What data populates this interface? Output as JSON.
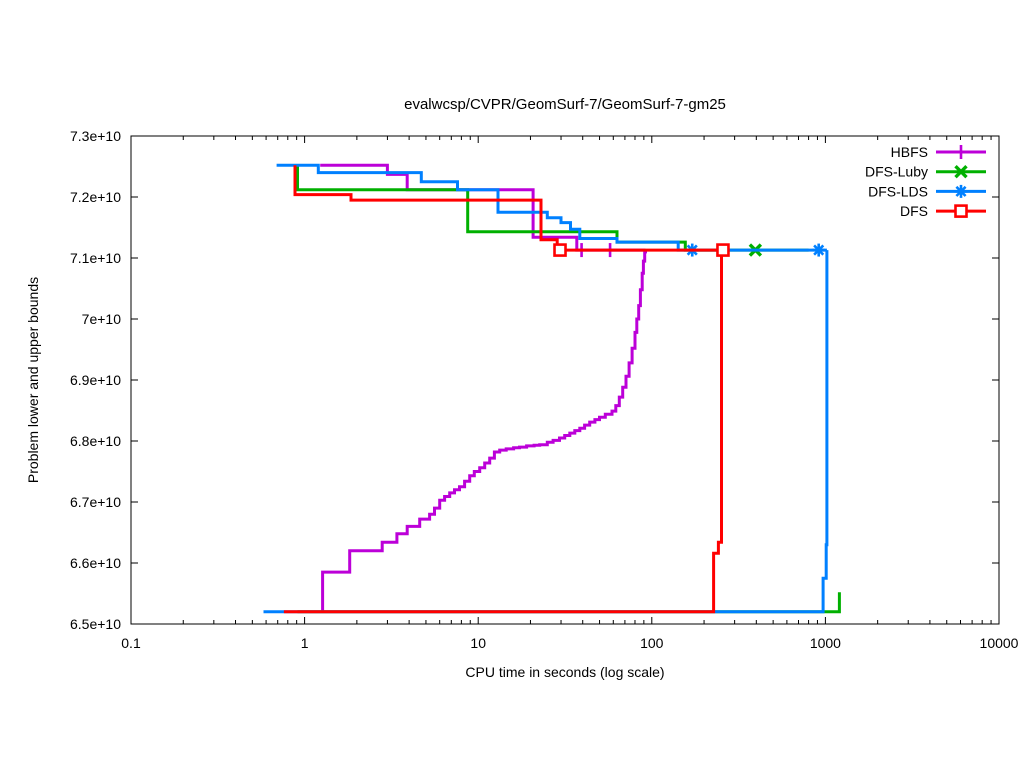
{
  "chart_data": {
    "type": "line",
    "title": "evalwcsp/CVPR/GeomSurf-7/GeomSurf-7-gm25",
    "xlabel": "CPU time in seconds (log scale)",
    "ylabel": "Problem lower and upper bounds",
    "x_scale": "log",
    "grid": false,
    "legend_position": "top-right-inside",
    "step_interpolation": "steps-post",
    "xlim": [
      0.1,
      10000
    ],
    "ylim": [
      65000000000.0,
      73000000000.0
    ],
    "x_ticks": {
      "values": [
        0.1,
        1,
        10,
        100,
        1000,
        10000
      ],
      "labels": [
        "0.1",
        "1",
        "10",
        "100",
        "1000",
        "10000"
      ]
    },
    "y_ticks": {
      "values": [
        65000000000.0,
        66000000000.0,
        67000000000.0,
        68000000000.0,
        69000000000.0,
        70000000000.0,
        71000000000.0,
        72000000000.0,
        73000000000.0
      ],
      "labels": [
        "6.5e+10",
        "6.6e+10",
        "6.7e+10",
        "6.8e+10",
        "6.9e+10",
        "7e+10",
        "7.1e+10",
        "7.2e+10",
        "7.3e+10"
      ]
    },
    "series": [
      {
        "name": "HBFS",
        "color": "#bc00d8",
        "marker": "plus",
        "upper": [
          [
            1.23,
            72520000000.0
          ],
          [
            3.0,
            72520000000.0
          ],
          [
            3.0,
            72370000000.0
          ],
          [
            3.9,
            72370000000.0
          ],
          [
            3.9,
            72120000000.0
          ],
          [
            20.7,
            72120000000.0
          ],
          [
            20.7,
            71340000000.0
          ],
          [
            37,
            71340000000.0
          ],
          [
            37,
            71130000000.0
          ],
          [
            92,
            71130000000.0
          ]
        ],
        "lower": [
          [
            1.27,
            65200000000.0
          ],
          [
            1.27,
            65850000000.0
          ],
          [
            1.82,
            65850000000.0
          ],
          [
            1.82,
            66200000000.0
          ],
          [
            2.8,
            66200000000.0
          ],
          [
            2.8,
            66340000000.0
          ],
          [
            3.4,
            66340000000.0
          ],
          [
            3.4,
            66480000000.0
          ],
          [
            3.9,
            66480000000.0
          ],
          [
            3.9,
            66600000000.0
          ],
          [
            4.6,
            66600000000.0
          ],
          [
            4.6,
            66720000000.0
          ],
          [
            5.25,
            66800000000.0
          ],
          [
            5.6,
            66900000000.0
          ],
          [
            6.0,
            67030000000.0
          ],
          [
            6.4,
            67090000000.0
          ],
          [
            6.85,
            67150000000.0
          ],
          [
            7.3,
            67200000000.0
          ],
          [
            7.8,
            67250000000.0
          ],
          [
            8.35,
            67340000000.0
          ],
          [
            8.93,
            67430000000.0
          ],
          [
            9.5,
            67500000000.0
          ],
          [
            10.2,
            67560000000.0
          ],
          [
            10.9,
            67640000000.0
          ],
          [
            11.65,
            67720000000.0
          ],
          [
            12.4,
            67820000000.0
          ],
          [
            13.3,
            67850000000.0
          ],
          [
            14.5,
            67870000000.0
          ],
          [
            16,
            67890000000.0
          ],
          [
            17.3,
            67900000000.0
          ],
          [
            19,
            67920000000.0
          ],
          [
            21,
            67930000000.0
          ],
          [
            22.6,
            67940000000.0
          ],
          [
            25,
            67980000000.0
          ],
          [
            27,
            68010000000.0
          ],
          [
            29.4,
            68050000000.0
          ],
          [
            31.5,
            68090000000.0
          ],
          [
            33.7,
            68130000000.0
          ],
          [
            36,
            68170000000.0
          ],
          [
            38.5,
            68210000000.0
          ],
          [
            41,
            68260000000.0
          ],
          [
            43.9,
            68310000000.0
          ],
          [
            47,
            68350000000.0
          ],
          [
            50,
            68390000000.0
          ],
          [
            54,
            68440000000.0
          ],
          [
            59,
            68490000000.0
          ],
          [
            62,
            68580000000.0
          ],
          [
            65,
            68720000000.0
          ],
          [
            68,
            68880000000.0
          ],
          [
            71,
            69060000000.0
          ],
          [
            74,
            69280000000.0
          ],
          [
            77,
            69520000000.0
          ],
          [
            80,
            69780000000.0
          ],
          [
            82,
            70000000000.0
          ],
          [
            84,
            70220000000.0
          ],
          [
            86,
            70480000000.0
          ],
          [
            88,
            70750000000.0
          ],
          [
            89.5,
            70950000000.0
          ],
          [
            91,
            71100000000.0
          ],
          [
            92,
            71130000000.0
          ]
        ],
        "marker_points": [
          [
            39.4,
            71130000000.0
          ],
          [
            57.5,
            71130000000.0
          ]
        ]
      },
      {
        "name": "DFS-Luby",
        "color": "#00b000",
        "marker": "cross",
        "upper": [
          [
            0.91,
            72520000000.0
          ],
          [
            0.91,
            72120000000.0
          ],
          [
            8.7,
            72120000000.0
          ],
          [
            8.7,
            71430000000.0
          ],
          [
            63,
            71430000000.0
          ],
          [
            63,
            71260000000.0
          ],
          [
            156,
            71260000000.0
          ],
          [
            156,
            71130000000.0
          ],
          [
            800,
            71130000000.0
          ]
        ],
        "lower": [
          [
            0.91,
            65200000000.0
          ],
          [
            1204,
            65200000000.0
          ],
          [
            1204,
            65520000000.0
          ]
        ],
        "marker_points": [
          [
            395,
            71130000000.0
          ]
        ]
      },
      {
        "name": "DFS-LDS",
        "color": "#0080ff",
        "marker": "star",
        "upper": [
          [
            0.69,
            72520000000.0
          ],
          [
            1.2,
            72520000000.0
          ],
          [
            1.2,
            72400000000.0
          ],
          [
            4.7,
            72400000000.0
          ],
          [
            4.7,
            72250000000.0
          ],
          [
            7.6,
            72250000000.0
          ],
          [
            7.6,
            72120000000.0
          ],
          [
            13,
            72120000000.0
          ],
          [
            13,
            71750000000.0
          ],
          [
            25,
            71750000000.0
          ],
          [
            25,
            71660000000.0
          ],
          [
            30,
            71660000000.0
          ],
          [
            30,
            71580000000.0
          ],
          [
            34,
            71580000000.0
          ],
          [
            34,
            71470000000.0
          ],
          [
            38.5,
            71470000000.0
          ],
          [
            38.5,
            71320000000.0
          ],
          [
            63,
            71320000000.0
          ],
          [
            63,
            71260000000.0
          ],
          [
            142,
            71260000000.0
          ],
          [
            142,
            71130000000.0
          ],
          [
            1020,
            71130000000.0
          ]
        ],
        "lower": [
          [
            0.58,
            65200000000.0
          ],
          [
            970,
            65200000000.0
          ],
          [
            970,
            65750000000.0
          ],
          [
            1010,
            65750000000.0
          ],
          [
            1010,
            66300000000.0
          ],
          [
            1020,
            66300000000.0
          ],
          [
            1020,
            71130000000.0
          ]
        ],
        "marker_points": [
          [
            171,
            71130000000.0
          ],
          [
            915,
            71130000000.0
          ]
        ]
      },
      {
        "name": "DFS",
        "color": "#ff0000",
        "marker": "square",
        "upper": [
          [
            0.88,
            72520000000.0
          ],
          [
            0.88,
            72040000000.0
          ],
          [
            1.85,
            72040000000.0
          ],
          [
            1.85,
            71950000000.0
          ],
          [
            23,
            71950000000.0
          ],
          [
            23,
            71300000000.0
          ],
          [
            28.5,
            71300000000.0
          ],
          [
            28.5,
            71130000000.0
          ],
          [
            257,
            71130000000.0
          ]
        ],
        "lower": [
          [
            0.76,
            65200000000.0
          ],
          [
            227,
            65200000000.0
          ],
          [
            227,
            66160000000.0
          ],
          [
            242,
            66160000000.0
          ],
          [
            242,
            66340000000.0
          ],
          [
            252,
            66340000000.0
          ],
          [
            252,
            71130000000.0
          ]
        ],
        "marker_points": [
          [
            29.6,
            71130000000.0
          ],
          [
            257,
            71130000000.0
          ]
        ]
      }
    ]
  }
}
